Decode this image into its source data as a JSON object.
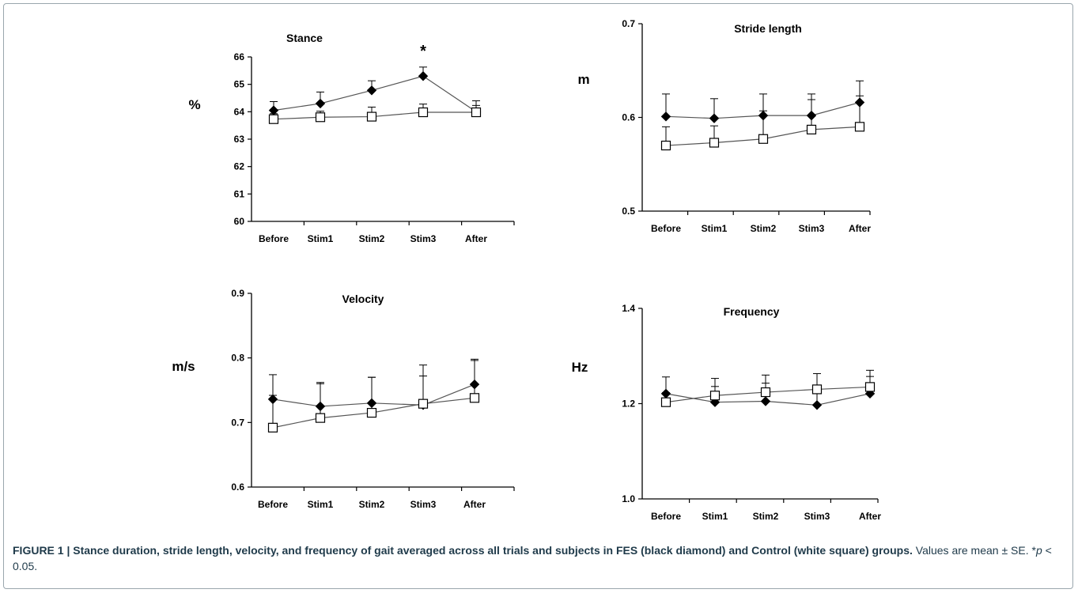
{
  "chart_data": [
    {
      "type": "line",
      "title": "Stance",
      "ylabel": "%",
      "xlabel": "",
      "ylim": [
        60,
        66
      ],
      "yticks": [
        "60",
        "61",
        "62",
        "63",
        "64",
        "65",
        "66"
      ],
      "categories": [
        "Before",
        "Stim1",
        "Stim2",
        "Stim3",
        "After"
      ],
      "series": [
        {
          "marker": "diamond",
          "fill": "#000000",
          "values": [
            64.05,
            64.3,
            64.78,
            65.3,
            64.0
          ],
          "errors": [
            0.32,
            0.42,
            0.35,
            0.33,
            0.4
          ]
        },
        {
          "marker": "square",
          "fill": "#ffffff",
          "values": [
            63.73,
            63.8,
            63.82,
            63.98,
            63.98
          ],
          "errors": [
            0.2,
            0.22,
            0.35,
            0.3,
            0.25
          ]
        }
      ],
      "annotations": [
        {
          "text": "*",
          "category": "Stim3"
        }
      ]
    },
    {
      "type": "line",
      "title": "Stride length",
      "ylabel": "m",
      "xlabel": "",
      "ylim": [
        0.5,
        0.7
      ],
      "yticks": [
        "0.5",
        "0.6",
        "0.7"
      ],
      "categories": [
        "Before",
        "Stim1",
        "Stim2",
        "Stim3",
        "After"
      ],
      "series": [
        {
          "marker": "diamond",
          "fill": "#000000",
          "values": [
            0.601,
            0.599,
            0.602,
            0.602,
            0.616
          ],
          "errors": [
            0.024,
            0.021,
            0.023,
            0.023,
            0.023
          ]
        },
        {
          "marker": "square",
          "fill": "#ffffff",
          "values": [
            0.57,
            0.573,
            0.577,
            0.587,
            0.59
          ],
          "errors": [
            0.02,
            0.018,
            0.03,
            0.032,
            0.033
          ]
        }
      ]
    },
    {
      "type": "line",
      "title": "Velocity",
      "ylabel": "m/s",
      "xlabel": "",
      "ylim": [
        0.6,
        0.9
      ],
      "yticks": [
        "0.6",
        "0.7",
        "0.8",
        "0.9"
      ],
      "categories": [
        "Before",
        "Stim1",
        "Stim2",
        "Stim3",
        "After"
      ],
      "series": [
        {
          "marker": "diamond",
          "fill": "#000000",
          "values": [
            0.736,
            0.725,
            0.73,
            0.727,
            0.759
          ],
          "errors": [
            0.038,
            0.035,
            0.04,
            0.045,
            0.039
          ]
        },
        {
          "marker": "square",
          "fill": "#ffffff",
          "values": [
            0.692,
            0.707,
            0.715,
            0.729,
            0.738
          ],
          "errors": [
            0.05,
            0.055,
            0.055,
            0.06,
            0.058
          ]
        }
      ]
    },
    {
      "type": "line",
      "title": "Frequency",
      "ylabel": "Hz",
      "xlabel": "",
      "ylim": [
        1.0,
        1.4
      ],
      "yticks": [
        "1.0",
        "1.2",
        "1.4"
      ],
      "categories": [
        "Before",
        "Stim1",
        "Stim2",
        "Stim3",
        "After"
      ],
      "series": [
        {
          "marker": "diamond",
          "fill": "#000000",
          "values": [
            1.221,
            1.203,
            1.205,
            1.197,
            1.221
          ],
          "errors": [
            0.035,
            0.033,
            0.038,
            0.04,
            0.036
          ]
        },
        {
          "marker": "square",
          "fill": "#ffffff",
          "values": [
            1.203,
            1.217,
            1.224,
            1.23,
            1.235
          ],
          "errors": [
            0.02,
            0.036,
            0.036,
            0.033,
            0.035
          ]
        }
      ]
    }
  ],
  "caption": {
    "bold": "FIGURE 1 | Stance duration, stride length, velocity, and frequency of gait averaged across all trials and subjects in FES (black diamond) and Control (white square) groups.",
    "normal_1": " Values are mean ± SE. *",
    "italic": "p",
    "normal_2": " < 0.05."
  }
}
